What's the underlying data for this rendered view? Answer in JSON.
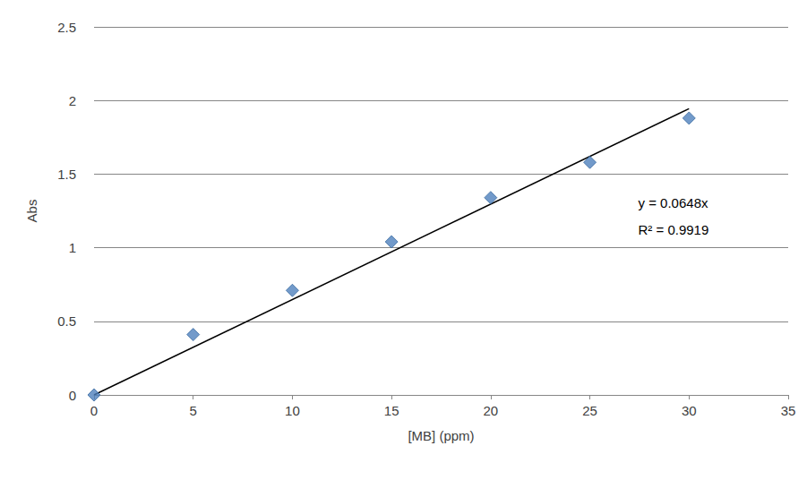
{
  "chart_data": {
    "type": "scatter",
    "x_label": "[MB] (ppm)",
    "y_label": "Abs",
    "series": [
      {
        "type": "scatter",
        "marker": "diamond",
        "color": "#4f81bd",
        "x": [
          0,
          5,
          10,
          15,
          20,
          25,
          30
        ],
        "values": [
          0,
          0.41,
          0.71,
          1.04,
          1.34,
          1.58,
          1.88
        ]
      },
      {
        "type": "line",
        "line_style": "solid",
        "color": "#000000",
        "x": [
          0,
          30
        ],
        "values": [
          0,
          1.944
        ]
      }
    ],
    "annotations": [
      "y = 0.0648x",
      "R² = 0.9919"
    ],
    "xlim": [
      0,
      35
    ],
    "xticks": [
      0,
      5,
      10,
      15,
      20,
      25,
      30,
      35
    ],
    "ylim": [
      0,
      2.5
    ],
    "yticks": [
      0,
      0.5,
      1,
      1.5,
      2,
      2.5
    ],
    "grid": true
  }
}
